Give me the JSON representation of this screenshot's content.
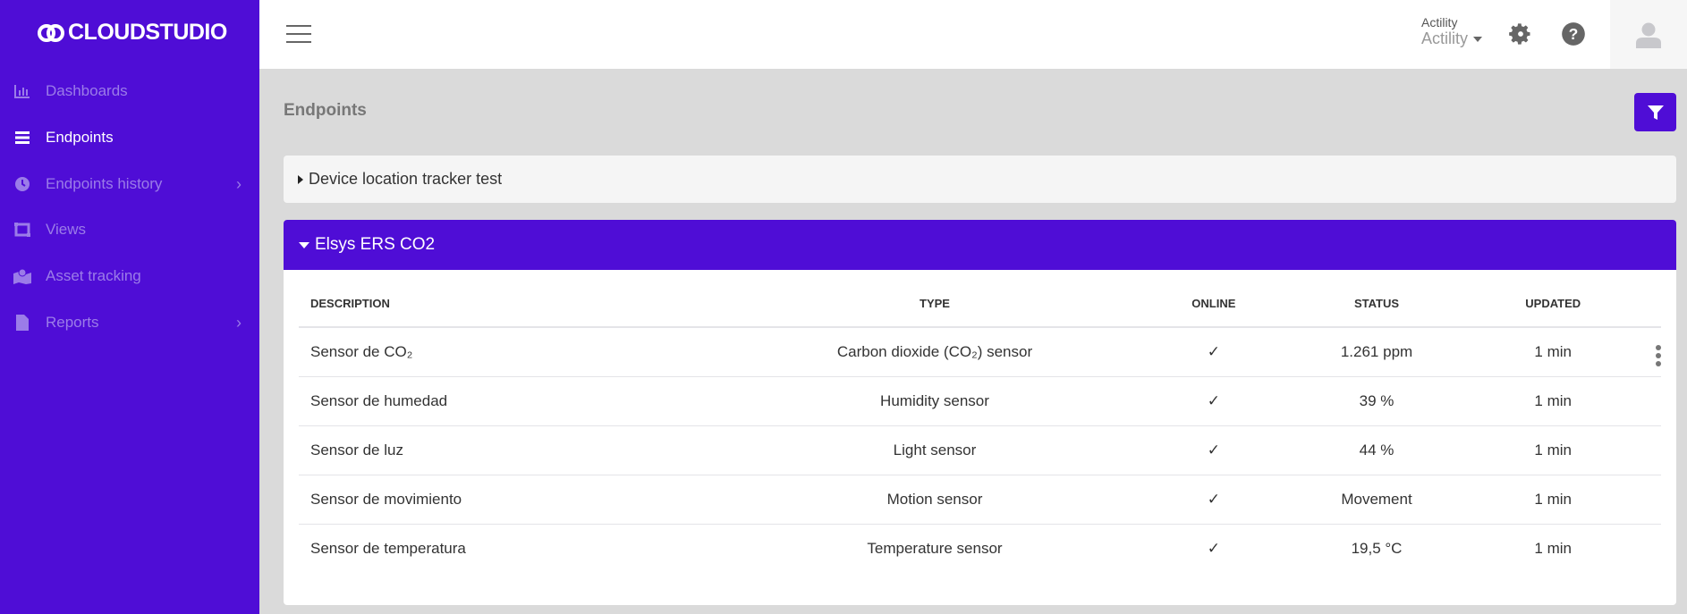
{
  "brand": {
    "name": "CLOUDSTUDIO",
    "color": "#4f0dd6"
  },
  "sidebar": {
    "items": [
      {
        "label": "Dashboards",
        "icon": "bar-chart-icon",
        "active": false,
        "has_submenu": false
      },
      {
        "label": "Endpoints",
        "icon": "list-icon",
        "active": true,
        "has_submenu": false
      },
      {
        "label": "Endpoints history",
        "icon": "clock-icon",
        "active": false,
        "has_submenu": true
      },
      {
        "label": "Views",
        "icon": "views-icon",
        "active": false,
        "has_submenu": false
      },
      {
        "label": "Asset tracking",
        "icon": "map-marker-icon",
        "active": false,
        "has_submenu": false
      },
      {
        "label": "Reports",
        "icon": "file-icon",
        "active": false,
        "has_submenu": true
      }
    ]
  },
  "header": {
    "org_label": "Actility",
    "org_value": "Actility"
  },
  "page": {
    "title": "Endpoints"
  },
  "groups": [
    {
      "name": "Device location tracker test",
      "expanded": false
    },
    {
      "name": "Elsys ERS CO2",
      "expanded": true
    }
  ],
  "table": {
    "columns": [
      "DESCRIPTION",
      "TYPE",
      "ONLINE",
      "STATUS",
      "UPDATED"
    ],
    "rows": [
      {
        "description": "Sensor de CO₂",
        "type": "Carbon dioxide (CO₂) sensor",
        "online": "✓",
        "status": "1.261 ppm",
        "updated": "1 min"
      },
      {
        "description": "Sensor de humedad",
        "type": "Humidity sensor",
        "online": "✓",
        "status": "39 %",
        "updated": "1 min"
      },
      {
        "description": "Sensor de luz",
        "type": "Light sensor",
        "online": "✓",
        "status": "44 %",
        "updated": "1 min"
      },
      {
        "description": "Sensor de movimiento",
        "type": "Motion sensor",
        "online": "✓",
        "status": "Movement",
        "updated": "1 min"
      },
      {
        "description": "Sensor de temperatura",
        "type": "Temperature sensor",
        "online": "✓",
        "status": "19,5 °C",
        "updated": "1 min"
      }
    ]
  }
}
